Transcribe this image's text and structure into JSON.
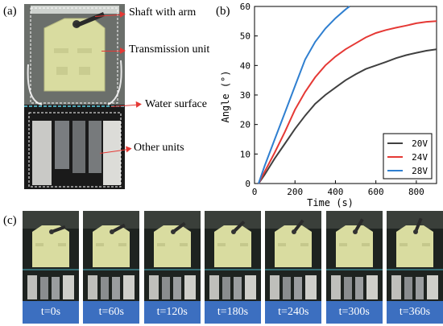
{
  "panels": {
    "a": "(a)",
    "b": "(b)",
    "c": "(c)"
  },
  "annotations": {
    "shaft": "Shaft with arm",
    "transmission": "Transmission unit",
    "water": "Water surface",
    "other": "Other units"
  },
  "colors": {
    "arrow": "#e53935",
    "frame_caption_bg": "#3c6fc0",
    "device_green": "#d9dca0"
  },
  "chart_data": {
    "type": "line",
    "ylabel": "Angle (°)",
    "xlabel": "Time (s)",
    "xlim": [
      0,
      900
    ],
    "ylim": [
      0,
      60
    ],
    "xticks": [
      0,
      200,
      400,
      600,
      800
    ],
    "yticks": [
      0,
      10,
      20,
      30,
      40,
      50,
      60
    ],
    "legend_position": "bottom-right",
    "series": [
      {
        "name": "20V",
        "color": "#404040",
        "x": [
          20,
          50,
          100,
          150,
          200,
          250,
          300,
          350,
          400,
          450,
          500,
          550,
          600,
          650,
          700,
          750,
          800,
          850,
          900
        ],
        "y": [
          0,
          3,
          8.5,
          13.5,
          18.5,
          23,
          27,
          30,
          32.5,
          35,
          37,
          38.8,
          40,
          41.2,
          42.5,
          43.5,
          44.3,
          45,
          45.5
        ]
      },
      {
        "name": "24V",
        "color": "#e53935",
        "x": [
          20,
          50,
          100,
          150,
          200,
          250,
          300,
          350,
          400,
          450,
          500,
          550,
          600,
          650,
          700,
          750,
          800,
          850,
          900
        ],
        "y": [
          0,
          4,
          10.5,
          17.5,
          25,
          31,
          36,
          40,
          43,
          45.5,
          47.5,
          49.5,
          51,
          52,
          52.8,
          53.5,
          54.3,
          54.8,
          55
        ]
      },
      {
        "name": "28V",
        "color": "#2f7fd0",
        "x": [
          20,
          50,
          100,
          150,
          200,
          250,
          300,
          350,
          400,
          450,
          470
        ],
        "y": [
          0,
          6,
          15,
          24,
          33,
          42,
          48,
          52.5,
          56,
          59,
          60
        ]
      }
    ]
  },
  "frames": [
    "t=0s",
    "t=60s",
    "t=120s",
    "t=180s",
    "t=240s",
    "t=300s",
    "t=360s"
  ]
}
